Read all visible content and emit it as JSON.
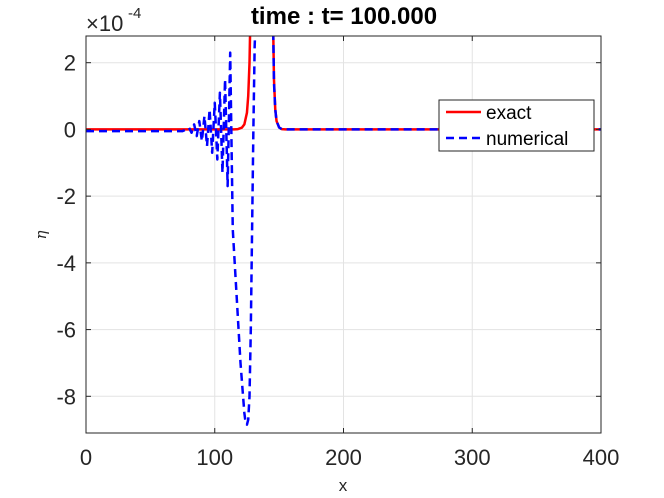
{
  "chart_data": {
    "type": "line",
    "title": "time : t= 100.000",
    "xlabel": "x",
    "ylabel": "η",
    "y_multiplier": {
      "base": "×10",
      "exponent": "-4"
    },
    "xlim": [
      0,
      400
    ],
    "ylim": [
      -9.1,
      2.8
    ],
    "xticks": [
      0,
      100,
      200,
      300,
      400
    ],
    "xtick_labels": [
      "0",
      "100",
      "200",
      "300",
      "400"
    ],
    "yticks": [
      2,
      0,
      -2,
      -4,
      -6,
      -8
    ],
    "ytick_labels": [
      "2",
      "0",
      "-2",
      "-4",
      "-6",
      "-8"
    ],
    "grid": true,
    "legend_position": "top-right",
    "series": [
      {
        "name": "exact",
        "color": "#ff0000",
        "style": "solid",
        "x": [
          0,
          100,
          110,
          115,
          118,
          121,
          123,
          125,
          126,
          127,
          128,
          145,
          146,
          147,
          148,
          150,
          152,
          155,
          160,
          400
        ],
        "y": [
          0,
          0,
          0,
          0.002,
          0.01,
          0.05,
          0.15,
          0.5,
          1.0,
          2.0,
          4.0,
          4.0,
          1.5,
          0.6,
          0.25,
          0.06,
          0.01,
          0,
          0,
          0
        ]
      },
      {
        "name": "numerical",
        "color": "#0000ff",
        "style": "dashed",
        "x": [
          0,
          75,
          78,
          80,
          82,
          84,
          86,
          88,
          90,
          92,
          94,
          96,
          98,
          100,
          102,
          104,
          106,
          108,
          110,
          112,
          114,
          117,
          120,
          122,
          123,
          124,
          125,
          126,
          127,
          128,
          129,
          130,
          131,
          132,
          133,
          145,
          146,
          147,
          148,
          150,
          152,
          155,
          160,
          400
        ],
        "y": [
          -0.05,
          -0.05,
          0.0,
          0.05,
          -0.1,
          0.15,
          -0.2,
          0.25,
          -0.35,
          0.4,
          -0.5,
          0.6,
          -0.7,
          0.8,
          -0.9,
          1.1,
          -1.3,
          1.5,
          -1.7,
          2.3,
          -3.0,
          -5.0,
          -7.0,
          -8.0,
          -8.5,
          -8.8,
          -8.85,
          -8.7,
          -8.0,
          -6.0,
          -3.0,
          0.0,
          2.5,
          3.5,
          4.0,
          4.0,
          1.4,
          0.6,
          0.25,
          0.06,
          0.01,
          0,
          0,
          0
        ]
      }
    ]
  }
}
